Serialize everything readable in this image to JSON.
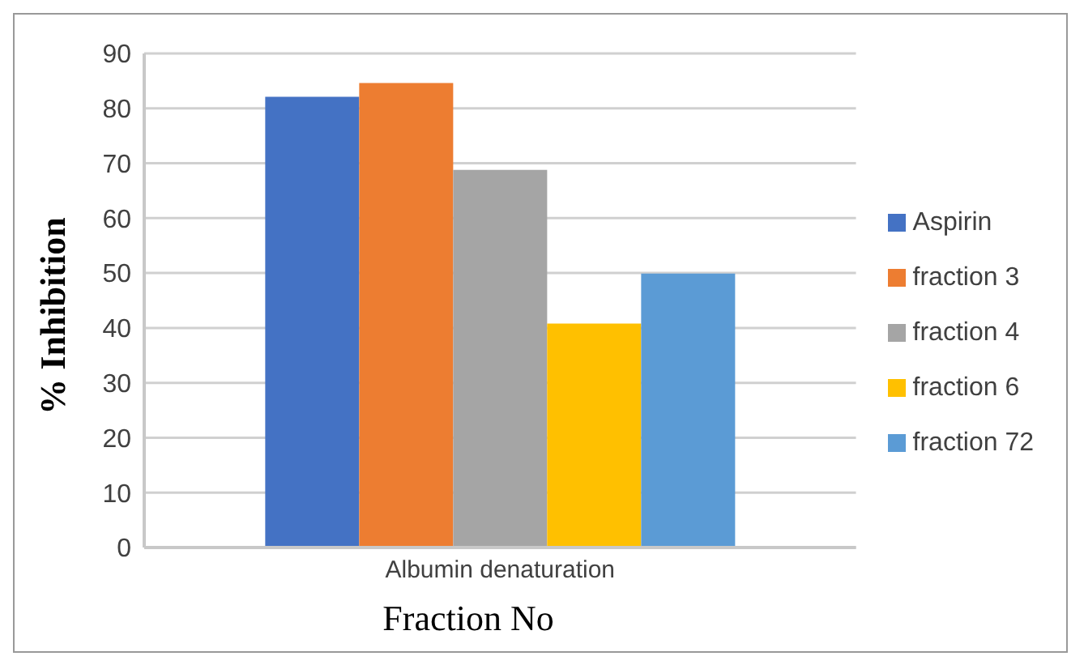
{
  "chart_data": {
    "type": "bar",
    "categories": [
      "Albumin denaturation"
    ],
    "xlabel": "Fraction No",
    "ylabel": "% Inhibition",
    "series": [
      {
        "name": "Aspirin",
        "color": "#4472c4",
        "values": [
          82.1
        ]
      },
      {
        "name": "fraction 3",
        "color": "#ed7d31",
        "values": [
          84.6
        ]
      },
      {
        "name": "fraction 4",
        "color": "#a5a5a5",
        "values": [
          68.8
        ]
      },
      {
        "name": "fraction 6",
        "color": "#ffc000",
        "values": [
          40.8
        ]
      },
      {
        "name": "fraction 72",
        "color": "#5b9bd5",
        "values": [
          49.9
        ]
      }
    ],
    "ylim": [
      0,
      90
    ],
    "yticks": [
      0,
      10,
      20,
      30,
      40,
      50,
      60,
      70,
      80,
      90
    ],
    "grid": "y",
    "legend": "right"
  }
}
